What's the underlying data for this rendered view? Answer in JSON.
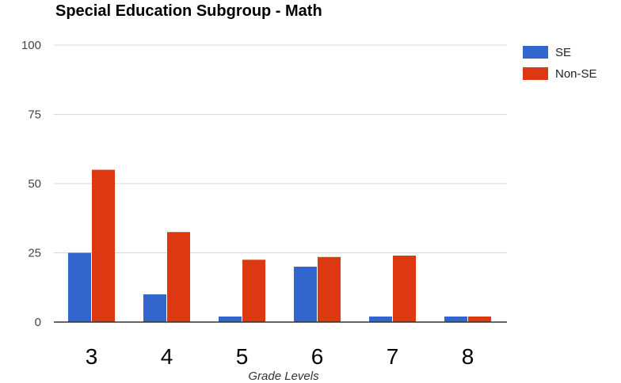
{
  "chart_data": {
    "type": "bar",
    "title": "Special Education Subgroup - Math",
    "xlabel": "Grade Levels",
    "ylabel": "",
    "categories": [
      "3",
      "4",
      "5",
      "6",
      "7",
      "8"
    ],
    "series": [
      {
        "name": "SE",
        "color": "#3366cc",
        "values": [
          25,
          10,
          2,
          20,
          2,
          2
        ]
      },
      {
        "name": "Non-SE",
        "color": "#dc3912",
        "values": [
          55,
          32.5,
          22.5,
          23.5,
          24,
          2
        ]
      }
    ],
    "ylim": [
      0,
      100
    ],
    "yticks": [
      0,
      25,
      50,
      75,
      100
    ],
    "ytick_labels": [
      "0",
      "25",
      "50",
      "75",
      "100"
    ],
    "grid": true,
    "legend_position": "right"
  }
}
